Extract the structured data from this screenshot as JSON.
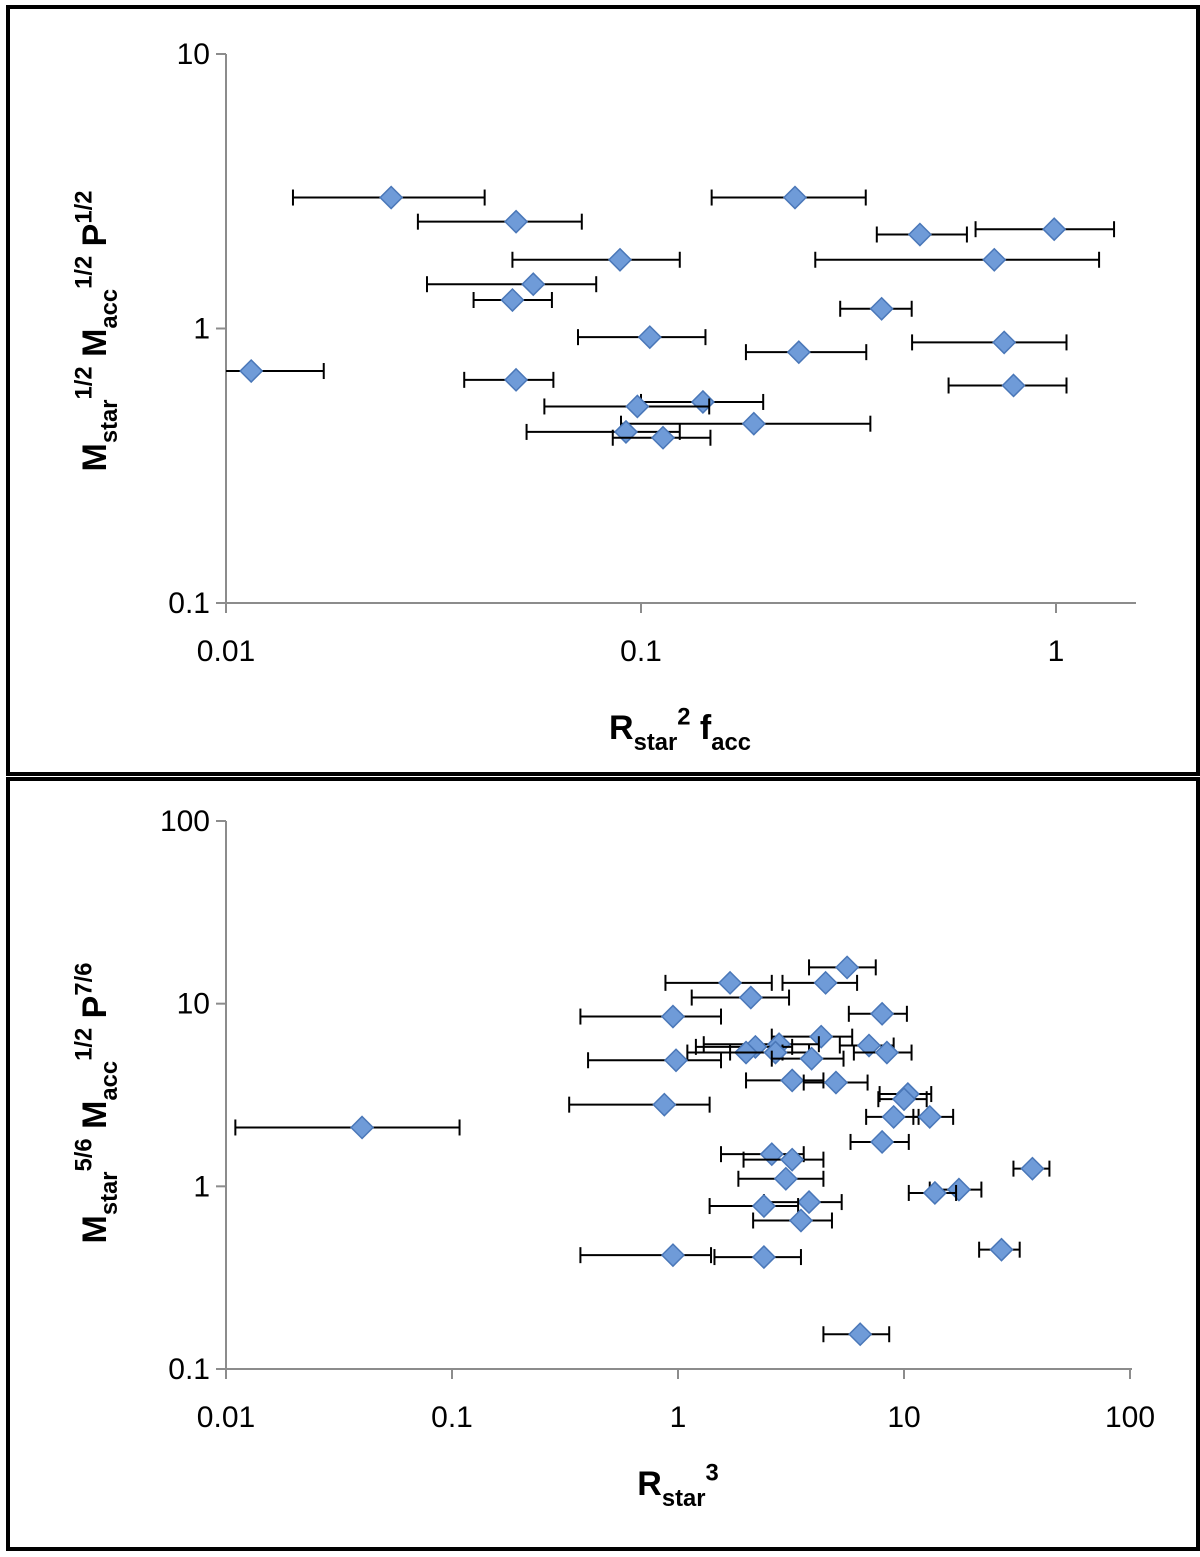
{
  "chart_data": [
    {
      "type": "scatter",
      "xscale": "log",
      "yscale": "log",
      "xlim": [
        0.01,
        1.4
      ],
      "ylim": [
        0.1,
        10
      ],
      "xticks": [
        "0.01",
        "0.1",
        "1"
      ],
      "yticks": [
        "0.1",
        "1",
        "10"
      ],
      "xlabel": {
        "parts": [
          {
            "t": "R",
            "s": "n"
          },
          {
            "t": "star",
            "s": "sub"
          },
          {
            "t": "2",
            "s": "sup"
          },
          {
            "t": "  f",
            "s": "n"
          },
          {
            "t": "acc",
            "s": "sub"
          }
        ]
      },
      "ylabel": {
        "parts": [
          {
            "t": "M",
            "s": "n"
          },
          {
            "t": "star",
            "s": "sub"
          },
          {
            "t": "1/2",
            "s": "sup"
          },
          {
            "t": "  M",
            "s": "n"
          },
          {
            "t": "acc",
            "s": "sub"
          },
          {
            "t": "1/2",
            "s": "sup"
          },
          {
            "t": "  P",
            "s": "n"
          },
          {
            "t": "1/2",
            "s": "sup"
          }
        ]
      },
      "grid": false,
      "marker_color": "#6F9BD8",
      "marker_edge": "#4A77B8",
      "errorbar_color": "#000000",
      "points": [
        {
          "x": 0.025,
          "y": 3.0,
          "xerr": [
            0.0145,
            0.042
          ]
        },
        {
          "x": 0.235,
          "y": 3.0,
          "xerr": [
            0.148,
            0.348
          ]
        },
        {
          "x": 0.05,
          "y": 2.45,
          "xerr": [
            0.029,
            0.072
          ]
        },
        {
          "x": 0.47,
          "y": 2.2,
          "xerr": [
            0.37,
            0.61
          ]
        },
        {
          "x": 0.99,
          "y": 2.3,
          "xerr": [
            0.64,
            1.38
          ]
        },
        {
          "x": 0.089,
          "y": 1.78,
          "xerr": [
            0.049,
            0.124
          ]
        },
        {
          "x": 0.71,
          "y": 1.78,
          "xerr": [
            0.263,
            1.27
          ]
        },
        {
          "x": 0.055,
          "y": 1.45,
          "xerr": [
            0.0305,
            0.078
          ]
        },
        {
          "x": 0.049,
          "y": 1.27,
          "xerr": [
            0.0395,
            0.061
          ]
        },
        {
          "x": 0.38,
          "y": 1.18,
          "xerr": [
            0.302,
            0.449
          ]
        },
        {
          "x": 0.105,
          "y": 0.93,
          "xerr": [
            0.0705,
            0.143
          ]
        },
        {
          "x": 0.75,
          "y": 0.89,
          "xerr": [
            0.45,
            1.06
          ]
        },
        {
          "x": 0.24,
          "y": 0.82,
          "xerr": [
            0.179,
            0.349
          ]
        },
        {
          "x": 0.0115,
          "y": 0.7,
          "xerr": [
            0.0,
            0.0172
          ]
        },
        {
          "x": 0.05,
          "y": 0.65,
          "xerr": [
            0.0375,
            0.0615
          ]
        },
        {
          "x": 0.79,
          "y": 0.62,
          "xerr": [
            0.551,
            1.06
          ]
        },
        {
          "x": 0.141,
          "y": 0.54,
          "xerr": [
            0.1,
            0.197
          ]
        },
        {
          "x": 0.098,
          "y": 0.52,
          "xerr": [
            0.0585,
            0.146
          ]
        },
        {
          "x": 0.187,
          "y": 0.45,
          "xerr": [
            0.0895,
            0.357
          ]
        },
        {
          "x": 0.092,
          "y": 0.42,
          "xerr": [
            0.053,
            0.124
          ]
        },
        {
          "x": 0.113,
          "y": 0.4,
          "xerr": [
            0.0855,
            0.147
          ]
        }
      ]
    },
    {
      "type": "scatter",
      "xscale": "log",
      "yscale": "log",
      "xlim": [
        0.01,
        100
      ],
      "ylim": [
        0.1,
        100
      ],
      "xticks": [
        "0.01",
        "0.1",
        "1",
        "10",
        "100"
      ],
      "yticks": [
        "0.1",
        "1",
        "10",
        "100"
      ],
      "xlabel": {
        "parts": [
          {
            "t": "R",
            "s": "n"
          },
          {
            "t": "star",
            "s": "sub"
          },
          {
            "t": "3",
            "s": "sup"
          }
        ]
      },
      "ylabel": {
        "parts": [
          {
            "t": "M",
            "s": "n"
          },
          {
            "t": "star",
            "s": "sub"
          },
          {
            "t": "5/6",
            "s": "sup"
          },
          {
            "t": "  M",
            "s": "n"
          },
          {
            "t": "acc",
            "s": "sub"
          },
          {
            "t": "1/2",
            "s": "sup"
          },
          {
            "t": "  P",
            "s": "n"
          },
          {
            "t": "7/6",
            "s": "sup"
          }
        ]
      },
      "grid": false,
      "marker_color": "#6F9BD8",
      "marker_edge": "#4A77B8",
      "errorbar_color": "#000000",
      "points": [
        {
          "x": 5.6,
          "y": 15.8,
          "xerr": [
            3.8,
            7.5
          ]
        },
        {
          "x": 1.7,
          "y": 13.0,
          "xerr": [
            0.88,
            2.6
          ]
        },
        {
          "x": 4.5,
          "y": 13.0,
          "xerr": [
            2.9,
            6.2
          ]
        },
        {
          "x": 2.1,
          "y": 10.8,
          "xerr": [
            1.15,
            3.1
          ]
        },
        {
          "x": 0.95,
          "y": 8.5,
          "xerr": [
            0.37,
            1.55
          ]
        },
        {
          "x": 8.0,
          "y": 8.8,
          "xerr": [
            5.7,
            10.3
          ]
        },
        {
          "x": 4.3,
          "y": 6.6,
          "xerr": [
            2.6,
            5.9
          ]
        },
        {
          "x": 2.8,
          "y": 6.0,
          "xerr": [
            1.3,
            4.2
          ]
        },
        {
          "x": 2.2,
          "y": 5.8,
          "xerr": [
            1.2,
            3.2
          ]
        },
        {
          "x": 7.0,
          "y": 5.9,
          "xerr": [
            5.2,
            9.0
          ]
        },
        {
          "x": 2.0,
          "y": 5.4,
          "xerr": [
            1.1,
            2.9
          ]
        },
        {
          "x": 2.7,
          "y": 5.4,
          "xerr": [
            1.7,
            3.8
          ]
        },
        {
          "x": 8.4,
          "y": 5.4,
          "xerr": [
            6.0,
            10.8
          ]
        },
        {
          "x": 0.98,
          "y": 4.9,
          "xerr": [
            0.4,
            1.55
          ]
        },
        {
          "x": 3.9,
          "y": 5.0,
          "xerr": [
            2.6,
            5.4
          ]
        },
        {
          "x": 3.2,
          "y": 3.8,
          "xerr": [
            2.0,
            4.4
          ]
        },
        {
          "x": 5.0,
          "y": 3.7,
          "xerr": [
            3.6,
            6.9
          ]
        },
        {
          "x": 10.4,
          "y": 3.2,
          "xerr": [
            7.8,
            13.2
          ]
        },
        {
          "x": 10.0,
          "y": 3.0,
          "xerr": [
            7.7,
            12.6
          ]
        },
        {
          "x": 0.87,
          "y": 2.8,
          "xerr": [
            0.33,
            1.38
          ]
        },
        {
          "x": 9.0,
          "y": 2.4,
          "xerr": [
            6.8,
            11.6
          ]
        },
        {
          "x": 13.0,
          "y": 2.4,
          "xerr": [
            11.0,
            16.5
          ]
        },
        {
          "x": 0.04,
          "y": 2.1,
          "xerr": [
            0.011,
            0.108
          ]
        },
        {
          "x": 8.0,
          "y": 1.75,
          "xerr": [
            5.8,
            10.5
          ]
        },
        {
          "x": 2.6,
          "y": 1.5,
          "xerr": [
            1.55,
            3.6
          ]
        },
        {
          "x": 3.2,
          "y": 1.4,
          "xerr": [
            1.95,
            4.4
          ]
        },
        {
          "x": 3.0,
          "y": 1.1,
          "xerr": [
            1.85,
            4.4
          ]
        },
        {
          "x": 37.0,
          "y": 1.25,
          "xerr": [
            30.5,
            44.0
          ]
        },
        {
          "x": 17.5,
          "y": 0.96,
          "xerr": [
            13.0,
            22.0
          ]
        },
        {
          "x": 13.7,
          "y": 0.92,
          "xerr": [
            10.5,
            17.0
          ]
        },
        {
          "x": 3.8,
          "y": 0.82,
          "xerr": [
            2.4,
            5.3
          ]
        },
        {
          "x": 2.4,
          "y": 0.78,
          "xerr": [
            1.38,
            3.4
          ]
        },
        {
          "x": 3.5,
          "y": 0.65,
          "xerr": [
            2.15,
            4.8
          ]
        },
        {
          "x": 27.0,
          "y": 0.45,
          "xerr": [
            21.5,
            32.5
          ]
        },
        {
          "x": 0.95,
          "y": 0.42,
          "xerr": [
            0.37,
            1.4
          ]
        },
        {
          "x": 2.4,
          "y": 0.41,
          "xerr": [
            1.45,
            3.5
          ]
        },
        {
          "x": 6.4,
          "y": 0.155,
          "xerr": [
            4.4,
            8.6
          ]
        }
      ]
    }
  ]
}
